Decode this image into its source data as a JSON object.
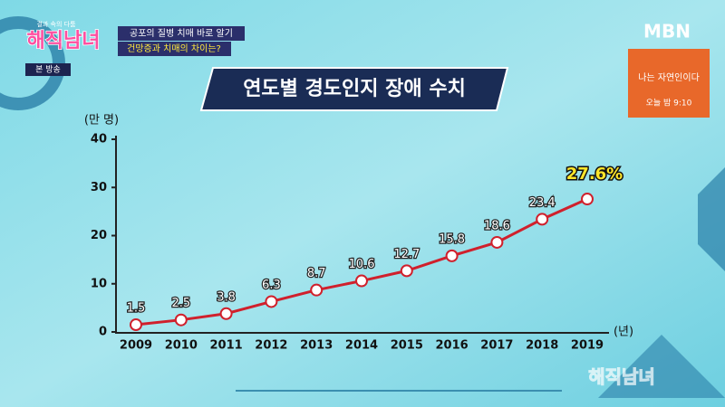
{
  "broadcast": {
    "show_logo_small": "결과 속의 다툼",
    "show_logo": "해직남녀",
    "caption_1": "공포의 질병 치매 바로 알기",
    "caption_2": "건망증과 치매의 차이는?",
    "live_badge": "본 방송",
    "channel": "MBN",
    "promo_title": "나는 자연인이다",
    "promo_time": "오늘 밤 9:10",
    "watermark": "해직남녀"
  },
  "chart_data": {
    "type": "line",
    "title": "연도별 경도인지 장애 수치",
    "y_label": "(만 명)",
    "x_label": "(년)",
    "categories": [
      "2009",
      "2010",
      "2011",
      "2012",
      "2013",
      "2014",
      "2015",
      "2016",
      "2017",
      "2018",
      "2019"
    ],
    "series": [
      {
        "name": "경도인지 장애",
        "color": "#d0202c",
        "values": [
          1.5,
          2.5,
          3.8,
          6.3,
          8.7,
          10.6,
          12.7,
          15.8,
          18.6,
          23.4,
          27.6
        ],
        "value_labels": [
          "1.5",
          "2.5",
          "3.8",
          "6.3",
          "8.7",
          "10.6",
          "12.7",
          "15.8",
          "18.6",
          "23.4",
          "27.6%"
        ]
      }
    ],
    "ylim": [
      0,
      40
    ],
    "yticks": [
      0,
      10,
      20,
      30,
      40
    ],
    "grid": false
  }
}
